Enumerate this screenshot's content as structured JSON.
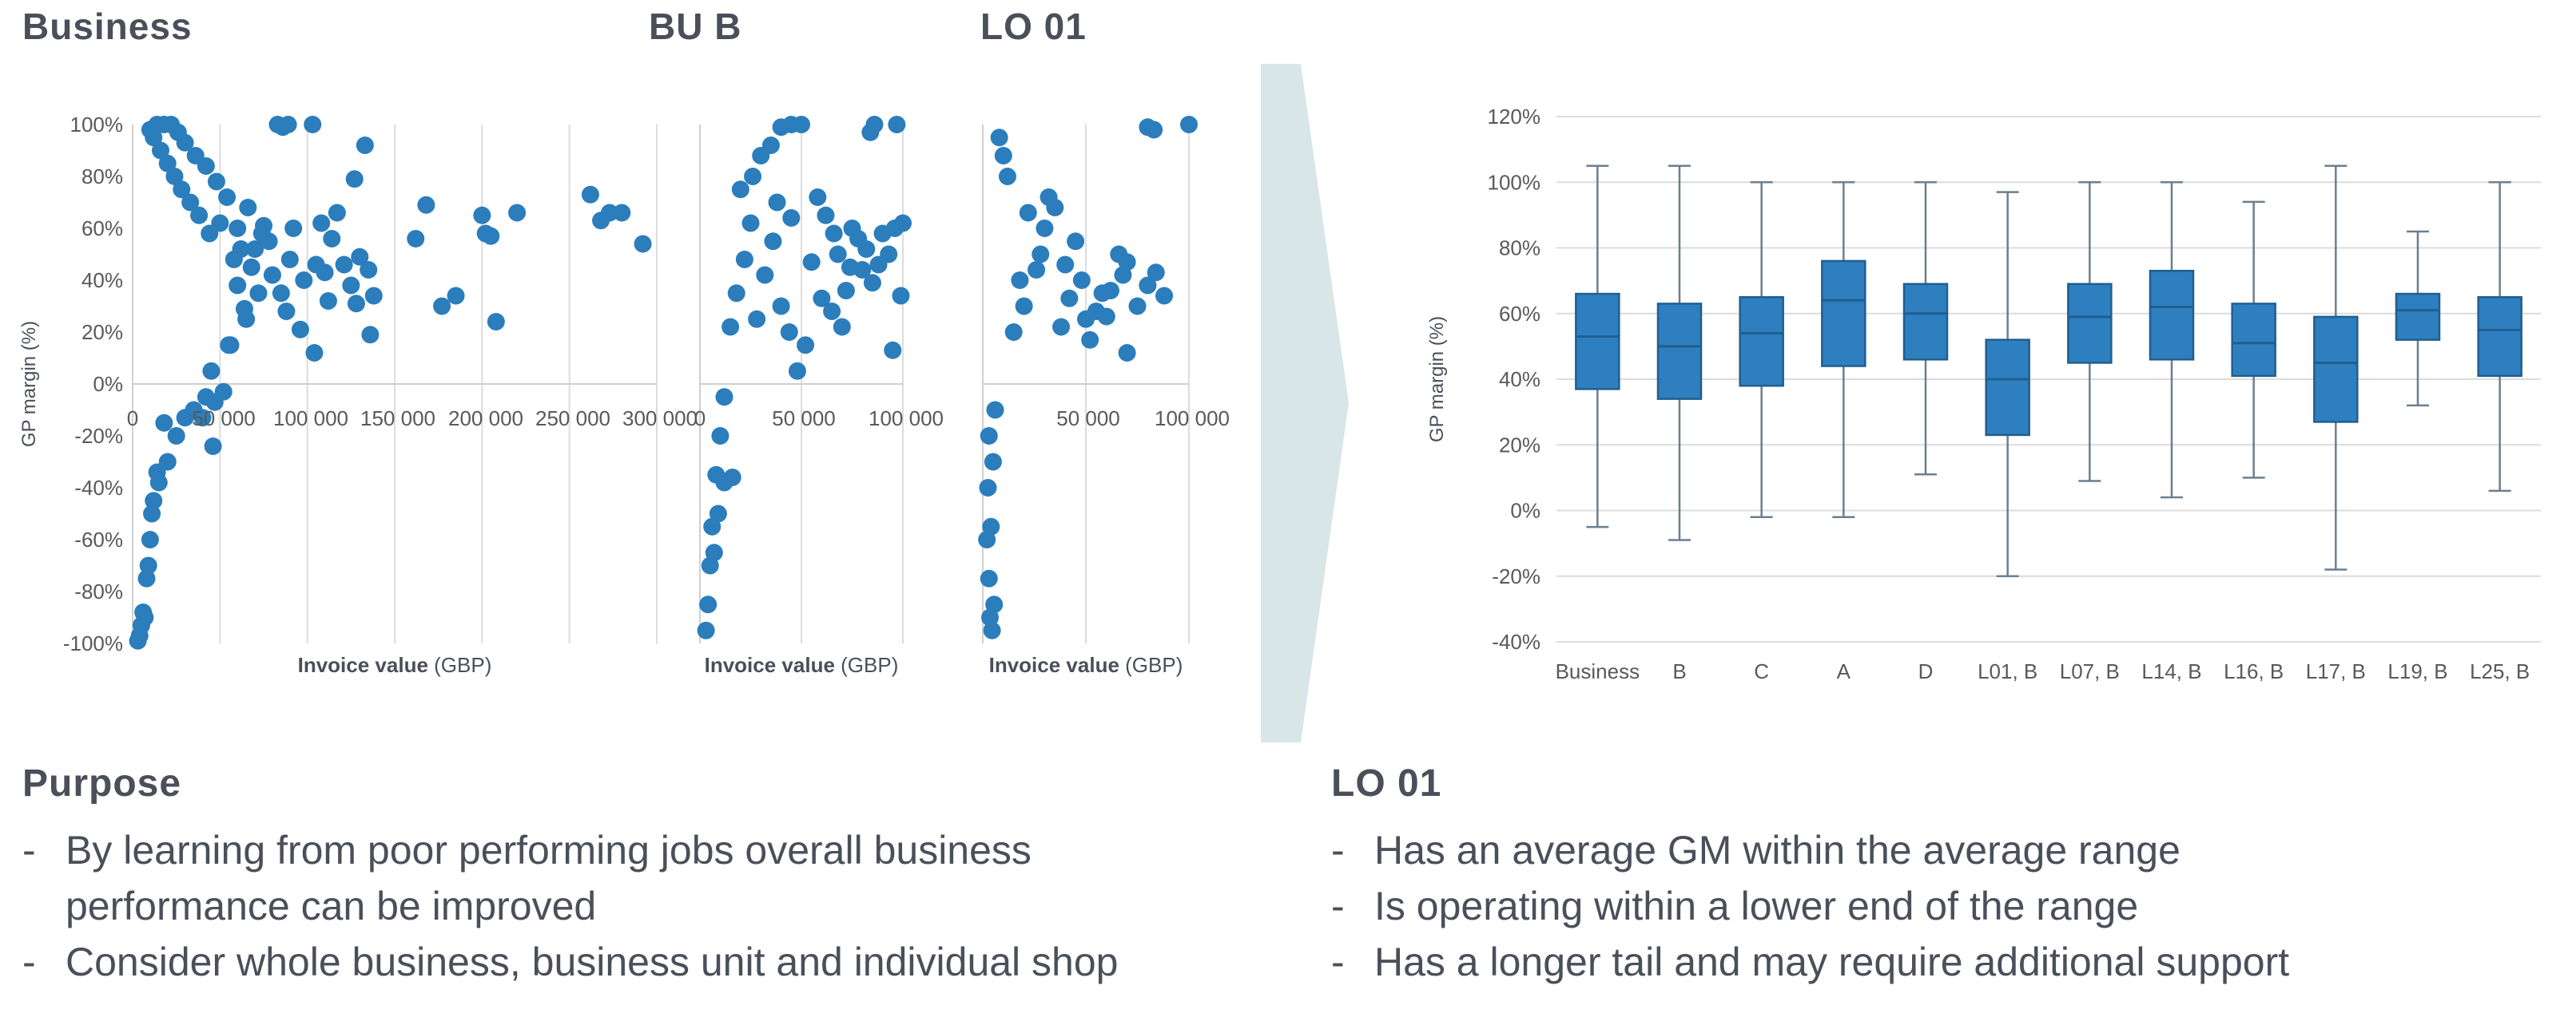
{
  "titles": {
    "business": "Business",
    "bu_b": "BU B",
    "lo01": "LO 01"
  },
  "chart_data": [
    {
      "type": "scatter",
      "title": "Business",
      "xlabel_bold": "Invoice value",
      "xlabel_unit": "(GBP)",
      "ylabel": "GP margin (%)",
      "xlim": [
        0,
        300000
      ],
      "ylim": [
        -100,
        100
      ],
      "x_ticks": [
        "0",
        "50 000",
        "100 000",
        "150 000",
        "200 000",
        "250 000",
        "300 000"
      ],
      "y_ticks": [
        "100%",
        "80%",
        "60%",
        "40%",
        "20%",
        "0%",
        "-20%",
        "-40%",
        "-60%",
        "-80%",
        "-100%"
      ],
      "points": [
        [
          83000,
          100
        ],
        [
          86000,
          99
        ],
        [
          89000,
          100
        ],
        [
          103000,
          100
        ],
        [
          133000,
          92
        ],
        [
          127000,
          79
        ],
        [
          117000,
          66
        ],
        [
          108000,
          62
        ],
        [
          114000,
          56
        ],
        [
          130000,
          49
        ],
        [
          135000,
          44
        ],
        [
          125000,
          38
        ],
        [
          138000,
          34
        ],
        [
          112000,
          32
        ],
        [
          128000,
          31
        ],
        [
          110000,
          43
        ],
        [
          121000,
          46
        ],
        [
          104000,
          12
        ],
        [
          96000,
          21
        ],
        [
          136000,
          19
        ],
        [
          162000,
          56
        ],
        [
          168000,
          69
        ],
        [
          177000,
          30
        ],
        [
          185000,
          34
        ],
        [
          200000,
          65
        ],
        [
          202000,
          58
        ],
        [
          205000,
          57
        ],
        [
          208000,
          24
        ],
        [
          220000,
          66
        ],
        [
          262000,
          73
        ],
        [
          268000,
          63
        ],
        [
          273000,
          66
        ],
        [
          280000,
          66
        ],
        [
          292000,
          54
        ],
        [
          70000,
          52
        ],
        [
          75000,
          61
        ],
        [
          80000,
          42
        ],
        [
          85000,
          35
        ],
        [
          90000,
          48
        ],
        [
          64000,
          29
        ],
        [
          60000,
          38
        ],
        [
          56000,
          15
        ],
        [
          52000,
          -3
        ],
        [
          47000,
          -7
        ],
        [
          42000,
          -5
        ],
        [
          46000,
          -24
        ],
        [
          40000,
          -13
        ],
        [
          30000,
          -13
        ],
        [
          18000,
          -15
        ],
        [
          14000,
          -34
        ],
        [
          12000,
          -45
        ],
        [
          10000,
          -60
        ],
        [
          8000,
          -75
        ],
        [
          6000,
          -88
        ],
        [
          5000,
          -93
        ],
        [
          4000,
          -97
        ],
        [
          3000,
          -99
        ],
        [
          7000,
          -90
        ],
        [
          9000,
          -70
        ],
        [
          11000,
          -50
        ],
        [
          15000,
          -38
        ],
        [
          20000,
          -30
        ],
        [
          25000,
          -20
        ],
        [
          35000,
          -10
        ],
        [
          45000,
          5
        ],
        [
          55000,
          15
        ],
        [
          65000,
          25
        ],
        [
          58000,
          48
        ],
        [
          62000,
          52
        ],
        [
          68000,
          45
        ],
        [
          72000,
          35
        ],
        [
          78000,
          55
        ],
        [
          88000,
          28
        ],
        [
          92000,
          60
        ],
        [
          98000,
          40
        ],
        [
          105000,
          46
        ],
        [
          38000,
          65
        ],
        [
          33000,
          70
        ],
        [
          28000,
          75
        ],
        [
          24000,
          80
        ],
        [
          20000,
          85
        ],
        [
          16000,
          90
        ],
        [
          12000,
          95
        ],
        [
          10000,
          98
        ],
        [
          44000,
          58
        ],
        [
          50000,
          62
        ],
        [
          54000,
          72
        ],
        [
          48000,
          78
        ],
        [
          42000,
          84
        ],
        [
          36000,
          88
        ],
        [
          30000,
          93
        ],
        [
          26000,
          97
        ],
        [
          22000,
          100
        ],
        [
          18000,
          100
        ],
        [
          14000,
          100
        ],
        [
          60000,
          60
        ],
        [
          66000,
          68
        ],
        [
          74000,
          58
        ]
      ]
    },
    {
      "type": "scatter",
      "title": "BU B",
      "xlabel_bold": "Invoice value",
      "xlabel_unit": "(GBP)",
      "xlim": [
        0,
        100000
      ],
      "ylim": [
        -100,
        100
      ],
      "x_ticks": [
        "0",
        "50 000",
        "100 000"
      ],
      "points": [
        [
          97000,
          100
        ],
        [
          86000,
          100
        ],
        [
          84000,
          97
        ],
        [
          100000,
          62
        ],
        [
          96000,
          60
        ],
        [
          90000,
          58
        ],
        [
          93000,
          50
        ],
        [
          88000,
          46
        ],
        [
          99000,
          34
        ],
        [
          95000,
          13
        ],
        [
          85000,
          39
        ],
        [
          80000,
          44
        ],
        [
          78000,
          56
        ],
        [
          75000,
          60
        ],
        [
          72000,
          36
        ],
        [
          70000,
          22
        ],
        [
          65000,
          28
        ],
        [
          60000,
          33
        ],
        [
          55000,
          47
        ],
        [
          52000,
          15
        ],
        [
          48000,
          5
        ],
        [
          44000,
          20
        ],
        [
          40000,
          30
        ],
        [
          36000,
          55
        ],
        [
          32000,
          42
        ],
        [
          28000,
          25
        ],
        [
          25000,
          62
        ],
        [
          22000,
          48
        ],
        [
          18000,
          35
        ],
        [
          15000,
          22
        ],
        [
          12000,
          -5
        ],
        [
          10000,
          -20
        ],
        [
          8000,
          -35
        ],
        [
          6000,
          -55
        ],
        [
          5000,
          -70
        ],
        [
          4000,
          -85
        ],
        [
          3000,
          -95
        ],
        [
          16000,
          -36
        ],
        [
          12000,
          -38
        ],
        [
          9000,
          -50
        ],
        [
          7000,
          -65
        ],
        [
          50000,
          100
        ],
        [
          45000,
          100
        ],
        [
          40000,
          99
        ],
        [
          35000,
          92
        ],
        [
          30000,
          88
        ],
        [
          26000,
          80
        ],
        [
          20000,
          75
        ],
        [
          58000,
          72
        ],
        [
          62000,
          65
        ],
        [
          66000,
          58
        ],
        [
          68000,
          50
        ],
        [
          74000,
          45
        ],
        [
          82000,
          52
        ],
        [
          45000,
          64
        ],
        [
          38000,
          70
        ]
      ]
    },
    {
      "type": "scatter",
      "title": "LO 01",
      "xlabel_bold": "Invoice value",
      "xlabel_unit": "(GBP)",
      "xlim": [
        0,
        100000
      ],
      "ylim": [
        -100,
        100
      ],
      "x_ticks": [
        "50 000",
        "100 000"
      ],
      "points": [
        [
          80000,
          99
        ],
        [
          83000,
          98
        ],
        [
          100000,
          100
        ],
        [
          84000,
          43
        ],
        [
          88000,
          34
        ],
        [
          80000,
          38
        ],
        [
          75000,
          30
        ],
        [
          70000,
          47
        ],
        [
          68000,
          42
        ],
        [
          66000,
          50
        ],
        [
          62000,
          36
        ],
        [
          60000,
          26
        ],
        [
          58000,
          35
        ],
        [
          55000,
          28
        ],
        [
          52000,
          17
        ],
        [
          50000,
          25
        ],
        [
          48000,
          40
        ],
        [
          45000,
          55
        ],
        [
          42000,
          33
        ],
        [
          40000,
          46
        ],
        [
          38000,
          22
        ],
        [
          35000,
          68
        ],
        [
          32000,
          72
        ],
        [
          30000,
          60
        ],
        [
          28000,
          50
        ],
        [
          26000,
          44
        ],
        [
          22000,
          66
        ],
        [
          20000,
          30
        ],
        [
          18000,
          40
        ],
        [
          15000,
          20
        ],
        [
          12000,
          80
        ],
        [
          10000,
          88
        ],
        [
          8000,
          95
        ],
        [
          6000,
          -10
        ],
        [
          5000,
          -30
        ],
        [
          4000,
          -55
        ],
        [
          3000,
          -75
        ],
        [
          3500,
          -90
        ],
        [
          4500,
          -95
        ],
        [
          5500,
          -85
        ],
        [
          2000,
          -60
        ],
        [
          2500,
          -40
        ],
        [
          3000,
          -20
        ],
        [
          70000,
          12
        ]
      ]
    },
    {
      "type": "box",
      "ylabel": "GP margin (%)",
      "ylim": [
        -40,
        120
      ],
      "y_ticks": [
        "120%",
        "100%",
        "80%",
        "60%",
        "40%",
        "20%",
        "0%",
        "-20%",
        "-40%"
      ],
      "categories": [
        "Business",
        "B",
        "C",
        "A",
        "D",
        "L01, B",
        "L07, B",
        "L14, B",
        "L16, B",
        "L17, B",
        "L19, B",
        "L25, B"
      ],
      "boxes": [
        {
          "min": -5,
          "q1": 37,
          "median": 53,
          "q3": 66,
          "max": 105
        },
        {
          "min": -9,
          "q1": 34,
          "median": 50,
          "q3": 63,
          "max": 105
        },
        {
          "min": -2,
          "q1": 38,
          "median": 54,
          "q3": 65,
          "max": 100
        },
        {
          "min": -2,
          "q1": 44,
          "median": 64,
          "q3": 76,
          "max": 100
        },
        {
          "min": 11,
          "q1": 46,
          "median": 60,
          "q3": 69,
          "max": 100
        },
        {
          "min": -20,
          "q1": 23,
          "median": 40,
          "q3": 52,
          "max": 97
        },
        {
          "min": 9,
          "q1": 45,
          "median": 59,
          "q3": 69,
          "max": 100
        },
        {
          "min": 4,
          "q1": 46,
          "median": 62,
          "q3": 73,
          "max": 100
        },
        {
          "min": 10,
          "q1": 41,
          "median": 51,
          "q3": 63,
          "max": 94
        },
        {
          "min": -18,
          "q1": 27,
          "median": 45,
          "q3": 59,
          "max": 105
        },
        {
          "min": 32,
          "q1": 52,
          "median": 61,
          "q3": 66,
          "max": 85
        },
        {
          "min": 6,
          "q1": 41,
          "median": 55,
          "q3": 65,
          "max": 100
        }
      ]
    }
  ],
  "purpose": {
    "title": "Purpose",
    "bullets": [
      "By learning from poor performing jobs overall business performance can be improved",
      "Consider whole business, business unit and individual shop"
    ]
  },
  "lo01_notes": {
    "title": "LO 01",
    "bullets": [
      "Has an average GM within the average range",
      "Is operating within a lower end of the range",
      "Has a longer tail and may require additional support"
    ]
  },
  "colors": {
    "accent": "#2b7dbc",
    "axis": "#cfcfcf",
    "grid": "#dcdcdc",
    "text": "#595959",
    "box": "#2e7fbf",
    "boxStroke": "#1f5f8f",
    "arrow": "#d9e6e8"
  }
}
